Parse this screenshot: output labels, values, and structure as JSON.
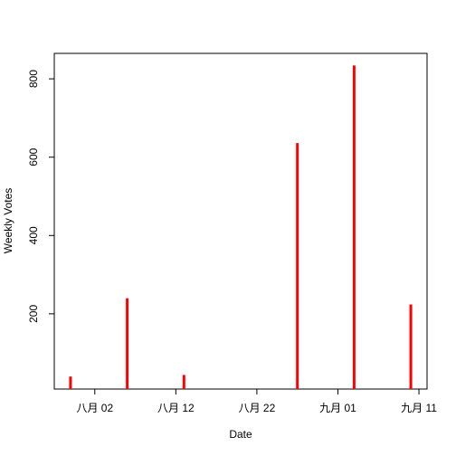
{
  "chart_data": {
    "type": "spike",
    "x_label": "Date",
    "y_label": "Weekly Votes",
    "x": [
      "07-30",
      "08-06",
      "08-13",
      "08-27",
      "09-03",
      "09-10"
    ],
    "values": [
      40,
      240,
      44,
      636,
      834,
      224
    ],
    "color": "#ff0000",
    "xlim": [
      "07-28",
      "09-12"
    ],
    "xticks": [
      {
        "value": "08-02",
        "label": "八月 02"
      },
      {
        "value": "08-12",
        "label": "八月 12"
      },
      {
        "value": "08-22",
        "label": "八月 22"
      },
      {
        "value": "09-01",
        "label": "九月 01"
      },
      {
        "value": "09-11",
        "label": "九月 11"
      }
    ],
    "ylim": [
      8,
      865
    ],
    "yticks": [
      200,
      400,
      600,
      800
    ]
  }
}
